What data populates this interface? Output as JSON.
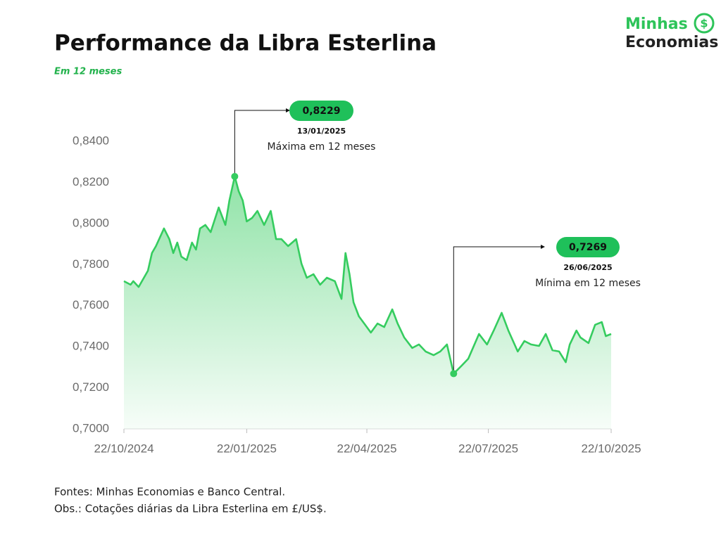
{
  "chart_data": {
    "type": "area",
    "title": "Performance da Libra Esterlina",
    "subtitle": "Em 12 meses",
    "x": [
      "22/10/2024",
      "27/10/2024",
      "29/10/2024",
      "02/11/2024",
      "06/11/2024",
      "09/11/2024",
      "12/11/2024",
      "15/11/2024",
      "21/11/2024",
      "25/11/2024",
      "28/11/2024",
      "01/12/2024",
      "04/12/2024",
      "08/12/2024",
      "12/12/2024",
      "15/12/2024",
      "18/12/2024",
      "22/12/2024",
      "26/12/2024",
      "01/01/2025",
      "06/01/2025",
      "09/01/2025",
      "13/01/2025",
      "16/01/2025",
      "19/01/2025",
      "22/01/2025",
      "26/01/2025",
      "30/01/2025",
      "04/02/2025",
      "09/02/2025",
      "13/02/2025",
      "17/02/2025",
      "22/02/2025",
      "28/02/2025",
      "04/03/2025",
      "08/03/2025",
      "13/03/2025",
      "18/03/2025",
      "23/03/2025",
      "29/03/2025",
      "03/04/2025",
      "06/04/2025",
      "09/04/2025",
      "12/04/2025",
      "16/04/2025",
      "20/04/2025",
      "25/04/2025",
      "30/04/2025",
      "05/05/2025",
      "11/05/2025",
      "15/05/2025",
      "20/05/2025",
      "26/05/2025",
      "31/05/2025",
      "05/06/2025",
      "11/06/2025",
      "16/06/2025",
      "21/06/2025",
      "26/06/2025",
      "02/07/2025",
      "07/07/2025",
      "15/07/2025",
      "21/07/2025",
      "26/07/2025",
      "01/08/2025",
      "06/08/2025",
      "13/08/2025",
      "18/08/2025",
      "23/08/2025",
      "29/08/2025",
      "03/09/2025",
      "08/09/2025",
      "13/09/2025",
      "18/09/2025",
      "21/09/2025",
      "26/09/2025",
      "29/09/2025",
      "05/10/2025",
      "10/10/2025",
      "15/10/2025",
      "18/10/2025",
      "22/10/2025"
    ],
    "values": [
      0.7719,
      0.7702,
      0.7719,
      0.7691,
      0.7736,
      0.777,
      0.7856,
      0.789,
      0.7976,
      0.7924,
      0.7856,
      0.7907,
      0.7839,
      0.7822,
      0.7907,
      0.7873,
      0.7976,
      0.7993,
      0.7958,
      0.8078,
      0.7993,
      0.8112,
      0.8229,
      0.8157,
      0.8112,
      0.801,
      0.8027,
      0.8061,
      0.7993,
      0.8061,
      0.7924,
      0.7924,
      0.789,
      0.7924,
      0.7804,
      0.7736,
      0.7753,
      0.7702,
      0.7736,
      0.7719,
      0.7633,
      0.7856,
      0.7753,
      0.7616,
      0.7548,
      0.7513,
      0.7469,
      0.7513,
      0.7496,
      0.7582,
      0.7513,
      0.7445,
      0.7394,
      0.7411,
      0.7377,
      0.7359,
      0.7377,
      0.7411,
      0.7269,
      0.7308,
      0.7342,
      0.7462,
      0.7411,
      0.7479,
      0.7565,
      0.7479,
      0.7377,
      0.7428,
      0.7411,
      0.7404,
      0.7462,
      0.7383,
      0.7377,
      0.7325,
      0.7411,
      0.7479,
      0.7445,
      0.7418,
      0.7507,
      0.752,
      0.7452,
      0.7462
    ],
    "color": "#35cc5f",
    "xlim": [
      "22/10/2024",
      "22/10/2025"
    ],
    "xticks": [
      "22/10/2024",
      "22/01/2025",
      "22/04/2025",
      "22/07/2025",
      "22/10/2025"
    ],
    "ylim": [
      0.7,
      0.84
    ],
    "yticks": [
      {
        "value": 0.7,
        "label": "0,7000"
      },
      {
        "value": 0.72,
        "label": "0,7200"
      },
      {
        "value": 0.74,
        "label": "0,7400"
      },
      {
        "value": 0.76,
        "label": "0,7600"
      },
      {
        "value": 0.78,
        "label": "0,7800"
      },
      {
        "value": 0.8,
        "label": "0,8000"
      },
      {
        "value": 0.82,
        "label": "0,8200"
      },
      {
        "value": 0.84,
        "label": "0,8400"
      }
    ],
    "grid": false,
    "annotations": [
      {
        "value": 0.8229,
        "value_label": "0,8229",
        "date": "13/01/2025",
        "text": "Máxima em 12 meses"
      },
      {
        "value": 0.7269,
        "value_label": "0,7269",
        "date": "26/06/2025",
        "text": "Mínima em 12 meses"
      }
    ]
  },
  "logo": {
    "line1": "Minhas",
    "line2": "Economias"
  },
  "footnotes": [
    "Fontes: Minhas Economias e Banco Central.",
    "Obs.: Cotações diárias da Libra Esterlina em £/US$."
  ]
}
